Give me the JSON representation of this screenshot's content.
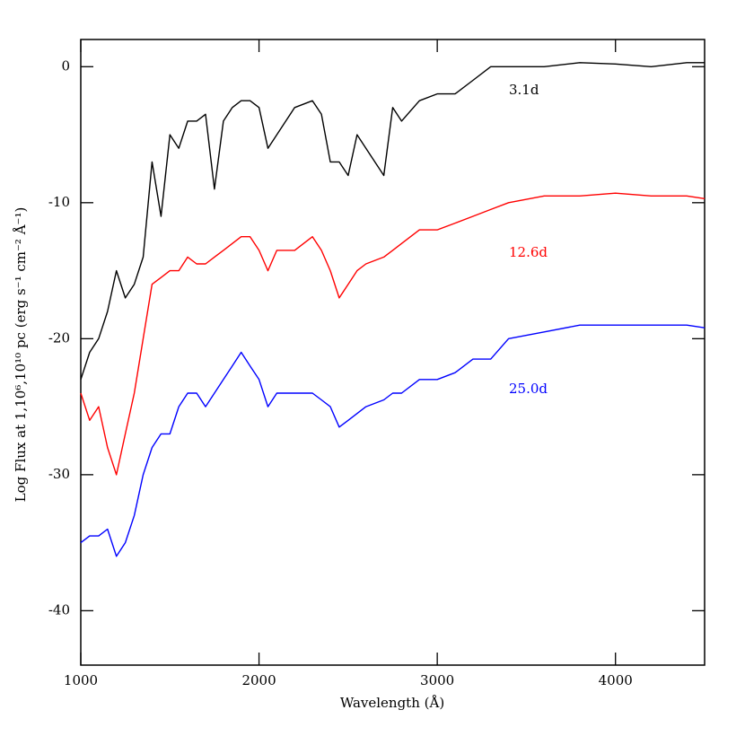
{
  "chart_data": {
    "type": "line",
    "x_label": "Wavelength (Å)",
    "y_label": "Log Flux at 1,10⁶,10¹⁰ pc (erg s⁻¹ cm⁻² Å⁻¹)",
    "xlim": [
      1000,
      4500
    ],
    "ylim": [
      -44,
      2
    ],
    "xticks": [
      1000,
      2000,
      3000,
      4000
    ],
    "yticks": [
      0,
      -10,
      -20,
      -30,
      -40
    ],
    "x": [
      1000,
      1050,
      1100,
      1150,
      1200,
      1250,
      1300,
      1350,
      1400,
      1450,
      1500,
      1550,
      1600,
      1650,
      1700,
      1750,
      1800,
      1850,
      1900,
      1950,
      2000,
      2050,
      2100,
      2200,
      2300,
      2350,
      2400,
      2450,
      2500,
      2550,
      2600,
      2700,
      2750,
      2800,
      2900,
      3000,
      3100,
      3200,
      3300,
      3400,
      3600,
      3800,
      4000,
      4200,
      4400,
      4500
    ],
    "series": [
      {
        "name": "3.1d",
        "color": "#000000",
        "values": [
          -23,
          -21,
          -20,
          -18,
          -15,
          -17,
          -16,
          -14,
          -7,
          -11,
          -5,
          -6,
          -4,
          -4,
          -3.5,
          -9,
          -4,
          -3,
          -2.5,
          -2.5,
          -3,
          -6,
          -5,
          -3,
          -2.5,
          -3.5,
          -7,
          -7,
          -8,
          -5,
          -6,
          -8,
          -3,
          -4,
          -2.5,
          -2,
          -2,
          -1,
          0,
          0,
          0,
          0.3,
          0.2,
          0,
          0.3,
          0.3
        ]
      },
      {
        "name": "12.6d",
        "color": "#ff0000",
        "values": [
          -24,
          -26,
          -25,
          -28,
          -30,
          -27,
          -24,
          -20,
          -16,
          -15.5,
          -15,
          -15,
          -14,
          -14.5,
          -14.5,
          -14,
          -13.5,
          -13,
          -12.5,
          -12.5,
          -13.5,
          -15,
          -13.5,
          -13.5,
          -12.5,
          -13.5,
          -15,
          -17,
          -16,
          -15,
          -14.5,
          -14,
          -13.5,
          -13,
          -12,
          -12,
          -11.5,
          -11,
          -10.5,
          -10,
          -9.5,
          -9.5,
          -9.3,
          -9.5,
          -9.5,
          -9.7
        ]
      },
      {
        "name": "25.0d",
        "color": "#0000ff",
        "values": [
          -35,
          -34.5,
          -34.5,
          -34,
          -36,
          -35,
          -33,
          -30,
          -28,
          -27,
          -27,
          -25,
          -24,
          -24,
          -25,
          -24,
          -23,
          -22,
          -21,
          -22,
          -23,
          -25,
          -24,
          -24,
          -24,
          -24.5,
          -25,
          -26.5,
          -26,
          -25.5,
          -25,
          -24.5,
          -24,
          -24,
          -23,
          -23,
          -22.5,
          -21.5,
          -21.5,
          -20,
          -19.5,
          -19,
          -19,
          -19,
          -19,
          -19.2
        ]
      }
    ]
  }
}
